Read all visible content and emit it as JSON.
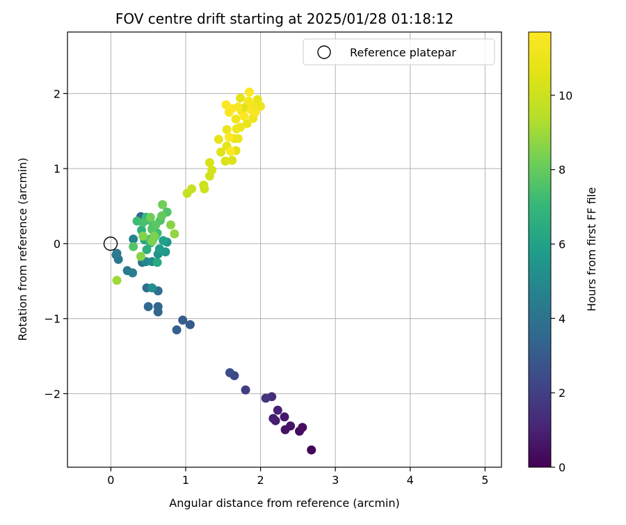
{
  "chart_data": {
    "type": "scatter",
    "title": "FOV centre drift starting at 2025/01/28 01:18:12",
    "xlabel": "Angular distance from reference (arcmin)",
    "ylabel": "Rotation from reference (arcmin)",
    "xlim": [
      -0.58,
      5.22
    ],
    "ylim": [
      -2.98,
      2.82
    ],
    "xticks": [
      0,
      1,
      2,
      3,
      4,
      5
    ],
    "xtick_labels": [
      "0",
      "1",
      "2",
      "3",
      "4",
      "5"
    ],
    "yticks": [
      -2,
      -1,
      0,
      1,
      2
    ],
    "ytick_labels": [
      "−2",
      "−1",
      "0",
      "1",
      "2"
    ],
    "grid": true,
    "legend": {
      "position": "top-right",
      "label": "Reference platepar",
      "reference_point": [
        0,
        0
      ]
    },
    "colorbar": {
      "label": "Hours from first FF file",
      "colormap": "viridis",
      "range": [
        0,
        11.7
      ],
      "ticks": [
        0,
        2,
        4,
        6,
        8,
        10
      ],
      "tick_labels": [
        "0",
        "2",
        "4",
        "6",
        "8",
        "10"
      ]
    },
    "points": [
      [
        2.68,
        -2.75,
        0.1
      ],
      [
        2.52,
        -2.5,
        0.3
      ],
      [
        2.56,
        -2.45,
        0.4
      ],
      [
        2.4,
        -2.43,
        0.6
      ],
      [
        2.33,
        -2.48,
        0.5
      ],
      [
        2.32,
        -2.31,
        0.7
      ],
      [
        2.2,
        -2.36,
        0.8
      ],
      [
        2.17,
        -2.33,
        0.9
      ],
      [
        2.23,
        -2.22,
        1.0
      ],
      [
        2.15,
        -2.04,
        1.4
      ],
      [
        2.07,
        -2.06,
        1.6
      ],
      [
        1.8,
        -1.95,
        2.0
      ],
      [
        1.65,
        -1.76,
        2.3
      ],
      [
        1.59,
        -1.72,
        2.5
      ],
      [
        1.06,
        -1.08,
        3.0
      ],
      [
        0.96,
        -1.02,
        3.1
      ],
      [
        0.88,
        -1.15,
        3.2
      ],
      [
        0.63,
        -0.84,
        3.4
      ],
      [
        0.63,
        -0.91,
        3.5
      ],
      [
        0.5,
        -0.84,
        3.6
      ],
      [
        0.48,
        -0.59,
        3.7
      ],
      [
        0.63,
        -0.63,
        3.8
      ],
      [
        0.4,
        0.36,
        3.5
      ],
      [
        0.42,
        -0.25,
        3.9
      ],
      [
        0.1,
        -0.21,
        4.2
      ],
      [
        0.07,
        -0.15,
        4.2
      ],
      [
        0.08,
        -0.13,
        4.3
      ],
      [
        0.22,
        -0.36,
        4.4
      ],
      [
        0.29,
        -0.39,
        4.5
      ],
      [
        0.3,
        0.06,
        4.6
      ],
      [
        0.47,
        -0.24,
        4.8
      ],
      [
        0.55,
        -0.24,
        5.0
      ],
      [
        0.62,
        -0.25,
        6.4
      ],
      [
        0.63,
        -0.14,
        5.4
      ],
      [
        0.73,
        -0.11,
        5.6
      ],
      [
        0.65,
        -0.07,
        5.8
      ],
      [
        0.75,
        0.02,
        5.5
      ],
      [
        0.55,
        -0.59,
        5.2
      ],
      [
        0.7,
        0.04,
        6.0
      ],
      [
        0.45,
        0.05,
        6.2
      ],
      [
        0.53,
        0.01,
        6.4
      ],
      [
        0.48,
        -0.08,
        6.6
      ],
      [
        0.41,
        0.18,
        6.8
      ],
      [
        0.59,
        0.1,
        6.8
      ],
      [
        0.55,
        0.2,
        7.0
      ],
      [
        0.47,
        0.35,
        7.0
      ],
      [
        0.35,
        0.3,
        7.2
      ],
      [
        0.62,
        0.14,
        7.2
      ],
      [
        0.52,
        0.31,
        7.4
      ],
      [
        0.43,
        0.28,
        7.4
      ],
      [
        0.52,
        0.06,
        7.6
      ],
      [
        0.56,
        0.05,
        7.6
      ],
      [
        0.66,
        0.31,
        7.6
      ],
      [
        0.75,
        0.42,
        7.6
      ],
      [
        0.55,
        0.19,
        7.7
      ],
      [
        0.3,
        -0.04,
        7.7
      ],
      [
        0.6,
        0.25,
        7.8
      ],
      [
        0.68,
        0.37,
        8.0
      ],
      [
        0.69,
        0.52,
        8.2
      ],
      [
        0.53,
        0.35,
        8.2
      ],
      [
        0.58,
        0.1,
        8.4
      ],
      [
        0.55,
        0.03,
        8.4
      ],
      [
        0.43,
        0.1,
        8.5
      ],
      [
        0.4,
        -0.17,
        8.6
      ],
      [
        0.8,
        0.25,
        8.6
      ],
      [
        0.85,
        0.13,
        8.8
      ],
      [
        0.08,
        -0.49,
        9.0
      ],
      [
        1.02,
        0.67,
        9.8
      ],
      [
        1.08,
        0.73,
        9.9
      ],
      [
        1.24,
        0.78,
        10.0
      ],
      [
        1.25,
        0.73,
        10.1
      ],
      [
        1.32,
        0.9,
        10.1
      ],
      [
        1.35,
        0.98,
        10.2
      ],
      [
        1.32,
        1.08,
        10.3
      ],
      [
        1.53,
        1.1,
        10.4
      ],
      [
        1.62,
        1.11,
        10.4
      ],
      [
        1.47,
        1.22,
        10.5
      ],
      [
        1.67,
        1.24,
        10.6
      ],
      [
        1.55,
        1.3,
        10.7
      ],
      [
        1.44,
        1.39,
        10.8
      ],
      [
        1.65,
        1.4,
        10.9
      ],
      [
        1.7,
        1.4,
        11.0
      ],
      [
        1.55,
        1.52,
        11.0
      ],
      [
        1.68,
        1.53,
        11.1
      ],
      [
        1.58,
        1.42,
        11.6
      ],
      [
        1.6,
        1.23,
        11.6
      ],
      [
        1.73,
        1.55,
        11.1
      ],
      [
        1.67,
        1.66,
        11.2
      ],
      [
        1.82,
        1.6,
        11.0
      ],
      [
        1.9,
        1.67,
        11.0
      ],
      [
        1.75,
        1.76,
        11.2
      ],
      [
        1.8,
        1.82,
        10.6
      ],
      [
        1.73,
        1.94,
        10.7
      ],
      [
        1.96,
        1.92,
        10.8
      ],
      [
        2.0,
        1.83,
        11.1
      ],
      [
        1.58,
        1.75,
        11.5
      ],
      [
        1.62,
        1.8,
        11.7
      ],
      [
        1.54,
        1.85,
        11.6
      ],
      [
        1.85,
        2.02,
        11.6
      ],
      [
        1.88,
        1.78,
        11.7
      ],
      [
        1.84,
        1.9,
        11.4
      ],
      [
        1.93,
        1.75,
        11.5
      ],
      [
        1.78,
        1.7,
        11.6
      ],
      [
        1.7,
        1.82,
        11.5
      ],
      [
        1.9,
        1.83,
        11.3
      ]
    ]
  }
}
